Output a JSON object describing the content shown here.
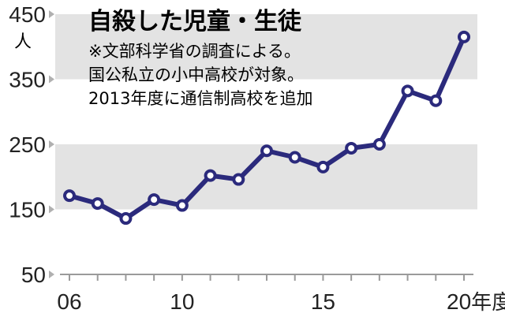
{
  "chart_data": {
    "type": "line",
    "title": "自殺した児童・生徒",
    "notes": [
      "※文部科学省の調査による。",
      "国公私立の小中高校が対象。",
      "2013年度に通信制高校を追加"
    ],
    "y_unit": "人",
    "x_unit_suffix": "年度",
    "x": [
      2006,
      2007,
      2008,
      2009,
      2010,
      2011,
      2012,
      2013,
      2014,
      2015,
      2016,
      2017,
      2018,
      2019,
      2020
    ],
    "values": [
      171,
      159,
      136,
      165,
      156,
      202,
      196,
      240,
      230,
      215,
      244,
      250,
      332,
      317,
      415
    ],
    "ylim": [
      50,
      450
    ],
    "y_ticks": [
      "50",
      "150",
      "250",
      "350",
      "450"
    ],
    "x_tick_labels": [
      {
        "x": 2006,
        "label": "06"
      },
      {
        "x": 2010,
        "label": "10"
      },
      {
        "x": 2015,
        "label": "15"
      },
      {
        "x": 2020,
        "label": "20"
      }
    ],
    "shaded_bands": [
      [
        150,
        250
      ],
      [
        350,
        450
      ]
    ],
    "colors": {
      "line": "#2b2a7c",
      "marker_fill": "#ffffff",
      "band": "#e3e3e3",
      "axis": "#9a9a9a",
      "tick_arrow": "#b0b0b0"
    }
  }
}
